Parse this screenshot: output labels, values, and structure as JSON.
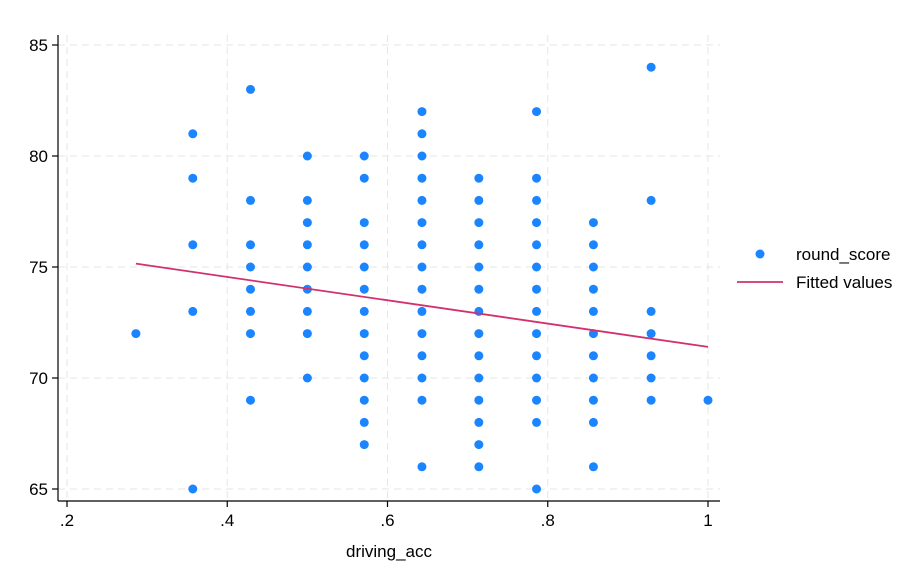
{
  "chart_data": {
    "type": "scatter",
    "xlabel": "driving_acc",
    "ylabel": "",
    "xlim": [
      0.2,
      1.0
    ],
    "ylim": [
      65,
      85
    ],
    "x_ticks": [
      0.2,
      0.4,
      0.6,
      0.8,
      1.0
    ],
    "x_tick_labels": [
      ".2",
      ".4",
      ".6",
      ".8",
      "1"
    ],
    "y_ticks": [
      65,
      70,
      75,
      80,
      85
    ],
    "y_tick_labels": [
      "65",
      "70",
      "75",
      "80",
      "85"
    ],
    "grid": true,
    "legend_position": "right",
    "series": [
      {
        "name": "round_score",
        "kind": "scatter",
        "color": "#1a85ff",
        "points": [
          [
            0.286,
            72
          ],
          [
            0.357,
            65
          ],
          [
            0.357,
            73
          ],
          [
            0.357,
            76
          ],
          [
            0.357,
            79
          ],
          [
            0.357,
            81
          ],
          [
            0.429,
            69
          ],
          [
            0.429,
            72
          ],
          [
            0.429,
            73
          ],
          [
            0.429,
            74
          ],
          [
            0.429,
            75
          ],
          [
            0.429,
            76
          ],
          [
            0.429,
            78
          ],
          [
            0.429,
            83
          ],
          [
            0.5,
            70
          ],
          [
            0.5,
            72
          ],
          [
            0.5,
            73
          ],
          [
            0.5,
            74
          ],
          [
            0.5,
            75
          ],
          [
            0.5,
            76
          ],
          [
            0.5,
            77
          ],
          [
            0.5,
            78
          ],
          [
            0.5,
            80
          ],
          [
            0.571,
            67
          ],
          [
            0.571,
            68
          ],
          [
            0.571,
            69
          ],
          [
            0.571,
            70
          ],
          [
            0.571,
            71
          ],
          [
            0.571,
            72
          ],
          [
            0.571,
            73
          ],
          [
            0.571,
            74
          ],
          [
            0.571,
            75
          ],
          [
            0.571,
            76
          ],
          [
            0.571,
            77
          ],
          [
            0.571,
            79
          ],
          [
            0.571,
            80
          ],
          [
            0.643,
            66
          ],
          [
            0.643,
            69
          ],
          [
            0.643,
            70
          ],
          [
            0.643,
            71
          ],
          [
            0.643,
            72
          ],
          [
            0.643,
            73
          ],
          [
            0.643,
            74
          ],
          [
            0.643,
            75
          ],
          [
            0.643,
            76
          ],
          [
            0.643,
            77
          ],
          [
            0.643,
            78
          ],
          [
            0.643,
            79
          ],
          [
            0.643,
            80
          ],
          [
            0.643,
            81
          ],
          [
            0.643,
            82
          ],
          [
            0.714,
            66
          ],
          [
            0.714,
            67
          ],
          [
            0.714,
            68
          ],
          [
            0.714,
            69
          ],
          [
            0.714,
            70
          ],
          [
            0.714,
            71
          ],
          [
            0.714,
            72
          ],
          [
            0.714,
            73
          ],
          [
            0.714,
            74
          ],
          [
            0.714,
            75
          ],
          [
            0.714,
            76
          ],
          [
            0.714,
            77
          ],
          [
            0.714,
            78
          ],
          [
            0.714,
            79
          ],
          [
            0.786,
            65
          ],
          [
            0.786,
            68
          ],
          [
            0.786,
            69
          ],
          [
            0.786,
            70
          ],
          [
            0.786,
            71
          ],
          [
            0.786,
            72
          ],
          [
            0.786,
            73
          ],
          [
            0.786,
            74
          ],
          [
            0.786,
            75
          ],
          [
            0.786,
            76
          ],
          [
            0.786,
            77
          ],
          [
            0.786,
            78
          ],
          [
            0.786,
            79
          ],
          [
            0.786,
            82
          ],
          [
            0.857,
            66
          ],
          [
            0.857,
            68
          ],
          [
            0.857,
            69
          ],
          [
            0.857,
            70
          ],
          [
            0.857,
            71
          ],
          [
            0.857,
            72
          ],
          [
            0.857,
            73
          ],
          [
            0.857,
            74
          ],
          [
            0.857,
            75
          ],
          [
            0.857,
            76
          ],
          [
            0.857,
            77
          ],
          [
            0.929,
            69
          ],
          [
            0.929,
            70
          ],
          [
            0.929,
            71
          ],
          [
            0.929,
            72
          ],
          [
            0.929,
            73
          ],
          [
            0.929,
            78
          ],
          [
            0.929,
            84
          ],
          [
            1.0,
            69
          ]
        ]
      },
      {
        "name": "Fitted values",
        "kind": "line",
        "color": "#d1326f",
        "points": [
          [
            0.286,
            75.15
          ],
          [
            1.0,
            71.4
          ]
        ]
      }
    ]
  }
}
